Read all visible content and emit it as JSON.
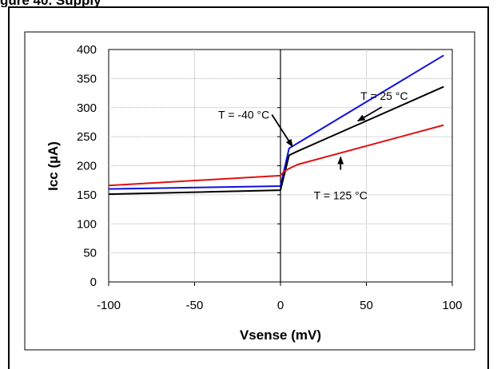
{
  "heading_fragment": "gure 40.  Supply",
  "colors": {
    "blue": "#1010e0",
    "black": "#000000",
    "red": "#e01010",
    "grid": "#b0b0b0"
  },
  "chart_data": {
    "type": "line",
    "title": "",
    "xlabel": "Vsense (mV)",
    "ylabel": "Icc (µA)",
    "xlim": [
      -100,
      100
    ],
    "ylim": [
      0,
      400
    ],
    "xticks": [
      -100,
      -50,
      0,
      50,
      100
    ],
    "yticks": [
      0,
      50,
      100,
      150,
      200,
      250,
      300,
      350,
      400
    ],
    "grid": true,
    "series": [
      {
        "name": "T = -40 °C",
        "color": "blue",
        "x": [
          -100,
          0,
          5,
          95
        ],
        "y": [
          160,
          165,
          230,
          390
        ]
      },
      {
        "name": "T = 25 °C",
        "color": "black",
        "x": [
          -100,
          0,
          5,
          10,
          95
        ],
        "y": [
          151,
          158,
          218,
          225,
          336
        ]
      },
      {
        "name": "T = 125 °C",
        "color": "red",
        "x": [
          -100,
          0,
          2,
          5,
          10,
          95
        ],
        "y": [
          166,
          183,
          190,
          195,
          202,
          270
        ]
      }
    ],
    "annotations": [
      {
        "text": "T = -40 °C",
        "from": [
          -5,
          288
        ],
        "to": [
          7,
          233
        ]
      },
      {
        "text": "T = 25 °C",
        "from": [
          59,
          301
        ],
        "to": [
          45,
          277
        ]
      },
      {
        "text": "T = 125 °C",
        "from": [
          35,
          193
        ],
        "to": [
          35,
          215
        ]
      }
    ]
  }
}
